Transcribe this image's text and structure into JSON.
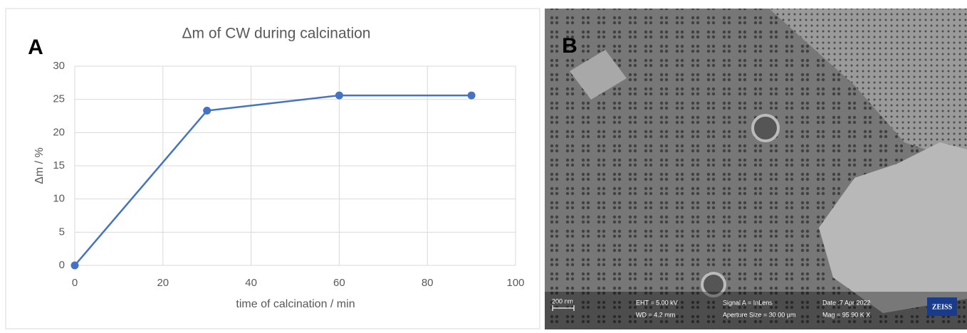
{
  "chart_data": {
    "type": "line",
    "panel_label": "A",
    "title": "Δm of CW during calcination",
    "x_label": "time of calcination / min",
    "y_label": "Δm / %",
    "x": [
      0,
      30,
      60,
      90
    ],
    "series": [
      {
        "color": "#4472c4",
        "values": [
          0,
          23.3,
          25.6,
          25.6
        ]
      }
    ],
    "xlim": [
      0,
      100
    ],
    "xticks": [
      0,
      20,
      40,
      60,
      80,
      100
    ],
    "ylim": [
      0,
      30
    ],
    "yticks": [
      0,
      5,
      10,
      15,
      20,
      25,
      30
    ],
    "grid": true
  },
  "sem_image": {
    "panel_label": "B",
    "scale_bar": "200 nm",
    "info": [
      "EHT = 5.00 kV",
      "WD = 4.2 mm",
      "Signal A = InLens",
      "Aperture Size = 30.00 µm",
      "Date :7 Apr 2022",
      "Mag = 95.90 K X"
    ],
    "logo": "ZEISS"
  }
}
